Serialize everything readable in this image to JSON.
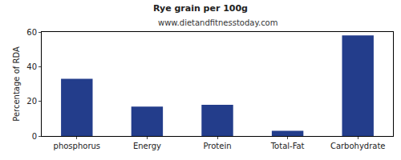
{
  "chart_data": {
    "type": "bar",
    "title": "Rye grain per 100g",
    "subtitle": "www.dietandfitnesstoday.com",
    "y_label": "Percentage of RDA",
    "categories": [
      "phosphorus",
      "Energy",
      "Protein",
      "Total-Fat",
      "Carbohydrate"
    ],
    "values": [
      33,
      17,
      18,
      3,
      58
    ],
    "color": "#233d8b",
    "ylim": [
      0,
      60
    ],
    "yticks": [
      0,
      20,
      40,
      60
    ],
    "grid": false
  }
}
